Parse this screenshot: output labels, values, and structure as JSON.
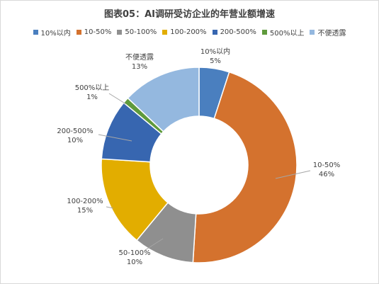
{
  "chart_data": {
    "type": "pie",
    "title": "图表05：AI调研受访企业的年营业额增速",
    "categories": [
      "10%以内",
      "10-50%",
      "50-100%",
      "100-200%",
      "200-500%",
      "500%以上",
      "不便透露"
    ],
    "values": [
      5,
      46,
      10,
      15,
      10,
      1,
      13
    ],
    "value_labels": [
      "5%",
      "46%",
      "10%",
      "15%",
      "10%",
      "1%",
      "13%"
    ],
    "colors": [
      "#4a7fbf",
      "#d4722e",
      "#8f8f8f",
      "#e2ad00",
      "#3766b0",
      "#5f9a3c",
      "#94b8df"
    ],
    "legend_position": "top",
    "style": "donut"
  }
}
